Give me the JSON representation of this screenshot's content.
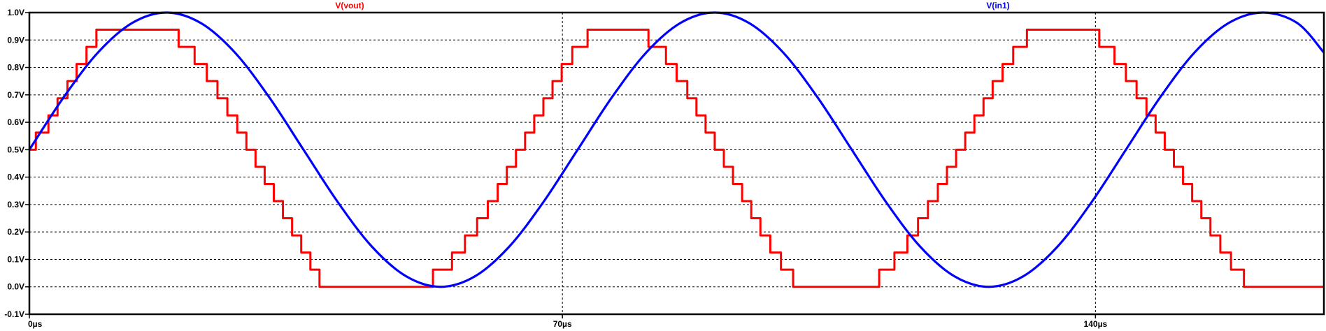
{
  "chart_data": {
    "type": "line",
    "title": "",
    "xlabel": "",
    "ylabel": "",
    "xlim": [
      0,
      170
    ],
    "ylim": [
      -0.1,
      1.0
    ],
    "x_unit": "µs",
    "x_ticks": [
      0,
      70,
      140
    ],
    "x_tick_labels": [
      "0µs",
      "70µs",
      "140µs"
    ],
    "y_ticks": [
      -0.1,
      0.0,
      0.1,
      0.2,
      0.3,
      0.4,
      0.5,
      0.6,
      0.7,
      0.8,
      0.9,
      1.0
    ],
    "y_tick_labels": [
      "-0.1V",
      "0.0V",
      "0.1V",
      "0.2V",
      "0.3V",
      "0.4V",
      "0.5V",
      "0.6V",
      "0.7V",
      "0.8V",
      "0.9V",
      "1.0V"
    ],
    "grid": true,
    "legend_placement": "top",
    "series": [
      {
        "name": "V(vout)",
        "color": "#ff0000",
        "step": true,
        "x": [
          0,
          0.85,
          2.5,
          3.7,
          5.0,
          6.2,
          7.5,
          8.8,
          10.2,
          12.6,
          19.6,
          21.7,
          23.3,
          24.7,
          26.0,
          27.3,
          28.5,
          29.7,
          30.9,
          32.1,
          33.3,
          34.5,
          35.7,
          36.9,
          38.1,
          39.4,
          40.8,
          42.4,
          44.1,
          46.6,
          53.0,
          55.5,
          57.2,
          58.8,
          60.2,
          61.5,
          62.7,
          63.9,
          65.1,
          66.3,
          67.5,
          68.7,
          69.9,
          71.3,
          73.3,
          81.3,
          83.6,
          85.0,
          86.4,
          87.6,
          88.8,
          90.0,
          91.2,
          92.4,
          93.6,
          94.8,
          96.0,
          97.3,
          98.7,
          100.3,
          102.4,
          106.5,
          111.6,
          113.6,
          115.3,
          116.7,
          118.0,
          119.3,
          120.5,
          121.7,
          122.9,
          124.1,
          125.3,
          126.5,
          127.8,
          129.2,
          131.0,
          134.0,
          140.5,
          142.5,
          144.0,
          145.4,
          146.7,
          147.9,
          149.1,
          150.3,
          151.5,
          152.7,
          153.9,
          155.1,
          156.4,
          157.8,
          159.5,
          161.6,
          165.8,
          170.0
        ],
        "y": [
          0.5,
          0.5625,
          0.625,
          0.6875,
          0.75,
          0.8125,
          0.875,
          0.9375,
          0.9375,
          0.9375,
          0.875,
          0.8125,
          0.75,
          0.6875,
          0.625,
          0.5625,
          0.5,
          0.4375,
          0.375,
          0.3125,
          0.25,
          0.1875,
          0.125,
          0.0625,
          0.0,
          0.0,
          0.0,
          0.0,
          0.0,
          0.0,
          0.0625,
          0.125,
          0.1875,
          0.25,
          0.3125,
          0.375,
          0.4375,
          0.5,
          0.5625,
          0.625,
          0.6875,
          0.75,
          0.8125,
          0.875,
          0.9375,
          0.875,
          0.8125,
          0.75,
          0.6875,
          0.625,
          0.5625,
          0.5,
          0.4375,
          0.375,
          0.3125,
          0.25,
          0.1875,
          0.125,
          0.0625,
          0.0,
          0.0,
          0.0,
          0.0625,
          0.125,
          0.1875,
          0.25,
          0.3125,
          0.375,
          0.4375,
          0.5,
          0.5625,
          0.625,
          0.6875,
          0.75,
          0.8125,
          0.875,
          0.9375,
          0.9375,
          0.875,
          0.8125,
          0.75,
          0.6875,
          0.625,
          0.5625,
          0.5,
          0.4375,
          0.375,
          0.3125,
          0.25,
          0.1875,
          0.125,
          0.0625,
          0.0,
          0.0,
          0.0,
          0.0
        ]
      },
      {
        "name": "V(in1)",
        "color": "#0000ff",
        "step": false,
        "x": [
          0,
          4.5,
          9,
          13.5,
          18,
          22.5,
          27,
          31.5,
          36,
          40.5,
          45,
          49.5,
          54,
          58.5,
          63,
          67.5,
          72,
          76.5,
          81,
          85.5,
          90,
          94.5,
          99,
          103.5,
          108,
          112.5,
          117,
          121.5,
          126,
          130.5,
          135,
          139.5,
          144,
          148.5,
          153,
          157.5,
          162,
          166.5,
          170
        ],
        "y": [
          0.5,
          0.691,
          0.854,
          0.962,
          1.0,
          0.962,
          0.854,
          0.691,
          0.5,
          0.309,
          0.146,
          0.038,
          0.0,
          0.038,
          0.146,
          0.309,
          0.5,
          0.691,
          0.854,
          0.962,
          1.0,
          0.962,
          0.854,
          0.691,
          0.5,
          0.309,
          0.146,
          0.038,
          0.0,
          0.038,
          0.146,
          0.309,
          0.5,
          0.691,
          0.854,
          0.962,
          1.0,
          0.962,
          0.854
        ]
      }
    ]
  }
}
